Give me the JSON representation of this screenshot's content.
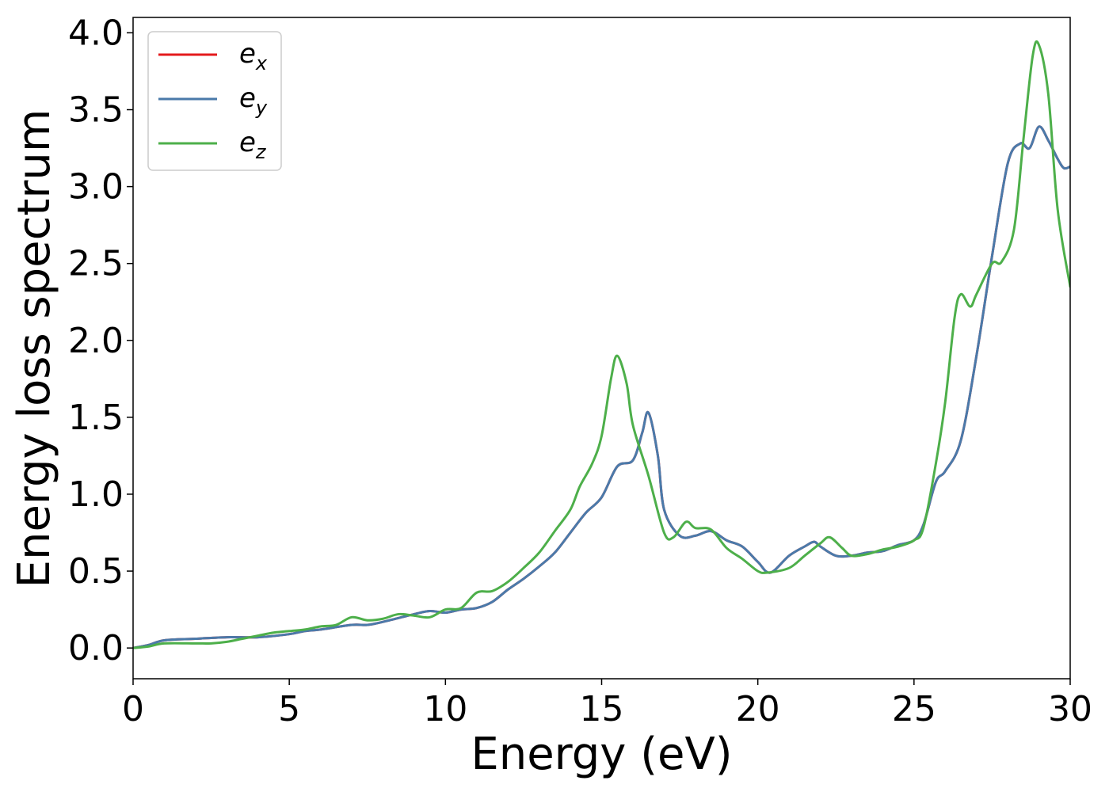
{
  "chart_data": {
    "type": "line",
    "xlabel": "Energy (eV)",
    "ylabel": "Energy loss spectrum",
    "xlim": [
      0,
      30
    ],
    "ylim": [
      -0.2,
      4.1
    ],
    "xticks": [
      0,
      5,
      10,
      15,
      20,
      25,
      30
    ],
    "xtick_labels": [
      "0",
      "5",
      "10",
      "15",
      "20",
      "25",
      "30"
    ],
    "yticks": [
      0.0,
      0.5,
      1.0,
      1.5,
      2.0,
      2.5,
      3.0,
      3.5,
      4.0
    ],
    "ytick_labels": [
      "0.0",
      "0.5",
      "1.0",
      "1.5",
      "2.0",
      "2.5",
      "3.0",
      "3.5",
      "4.0"
    ],
    "grid": false,
    "legend_position": "top-left",
    "series": [
      {
        "name": "e",
        "subscript": "x",
        "color": "#e41a1c",
        "x": [
          0,
          0.5,
          1,
          2,
          3,
          4,
          5,
          5.5,
          6,
          7,
          7.5,
          8,
          9,
          9.5,
          10,
          10.5,
          11,
          11.5,
          12,
          12.5,
          13,
          13.5,
          14,
          14.5,
          15,
          15.5,
          16,
          16.3,
          16.5,
          16.8,
          17,
          17.5,
          18,
          18.5,
          19,
          19.5,
          20,
          20.4,
          21,
          21.5,
          21.8,
          22,
          22.5,
          23,
          23.5,
          24,
          24.5,
          25,
          25.3,
          25.7,
          26,
          26.5,
          27,
          27.5,
          28,
          28.4,
          28.7,
          29,
          29.3,
          29.6,
          29.8,
          30
        ],
        "y": [
          0.0,
          0.02,
          0.05,
          0.06,
          0.07,
          0.07,
          0.09,
          0.11,
          0.12,
          0.15,
          0.15,
          0.17,
          0.22,
          0.24,
          0.23,
          0.25,
          0.26,
          0.3,
          0.38,
          0.45,
          0.53,
          0.62,
          0.75,
          0.88,
          0.98,
          1.18,
          1.22,
          1.4,
          1.53,
          1.25,
          0.9,
          0.73,
          0.73,
          0.76,
          0.7,
          0.66,
          0.56,
          0.49,
          0.6,
          0.66,
          0.69,
          0.66,
          0.6,
          0.6,
          0.62,
          0.63,
          0.67,
          0.7,
          0.8,
          1.08,
          1.15,
          1.35,
          1.9,
          2.55,
          3.15,
          3.28,
          3.25,
          3.39,
          3.3,
          3.18,
          3.12,
          3.13
        ]
      },
      {
        "name": "e",
        "subscript": "y",
        "color": "#4a7aaa",
        "x": [
          0,
          0.5,
          1,
          2,
          3,
          4,
          5,
          5.5,
          6,
          7,
          7.5,
          8,
          9,
          9.5,
          10,
          10.5,
          11,
          11.5,
          12,
          12.5,
          13,
          13.5,
          14,
          14.5,
          15,
          15.5,
          16,
          16.3,
          16.5,
          16.8,
          17,
          17.5,
          18,
          18.5,
          19,
          19.5,
          20,
          20.4,
          21,
          21.5,
          21.8,
          22,
          22.5,
          23,
          23.5,
          24,
          24.5,
          25,
          25.3,
          25.7,
          26,
          26.5,
          27,
          27.5,
          28,
          28.4,
          28.7,
          29,
          29.3,
          29.6,
          29.8,
          30
        ],
        "y": [
          0.0,
          0.02,
          0.05,
          0.06,
          0.07,
          0.07,
          0.09,
          0.11,
          0.12,
          0.15,
          0.15,
          0.17,
          0.22,
          0.24,
          0.23,
          0.25,
          0.26,
          0.3,
          0.38,
          0.45,
          0.53,
          0.62,
          0.75,
          0.88,
          0.98,
          1.18,
          1.22,
          1.4,
          1.53,
          1.25,
          0.9,
          0.73,
          0.73,
          0.76,
          0.7,
          0.66,
          0.56,
          0.49,
          0.6,
          0.66,
          0.69,
          0.66,
          0.6,
          0.6,
          0.62,
          0.63,
          0.67,
          0.7,
          0.8,
          1.08,
          1.15,
          1.35,
          1.9,
          2.55,
          3.15,
          3.28,
          3.25,
          3.39,
          3.3,
          3.18,
          3.12,
          3.13
        ]
      },
      {
        "name": "e",
        "subscript": "z",
        "color": "#4daf4a",
        "x": [
          0,
          0.5,
          1,
          2,
          2.5,
          3,
          3.5,
          4,
          4.5,
          5,
          5.5,
          6,
          6.5,
          7,
          7.5,
          8,
          8.5,
          9,
          9.5,
          10,
          10.5,
          11,
          11.5,
          12,
          12.5,
          13,
          13.5,
          14,
          14.3,
          14.7,
          15,
          15.3,
          15.5,
          15.8,
          16,
          16.5,
          17,
          17.3,
          17.7,
          18,
          18.5,
          19,
          19.5,
          20,
          20.3,
          21,
          21.5,
          22,
          22.3,
          22.7,
          23,
          23.5,
          24,
          24.5,
          25,
          25.3,
          25.7,
          26,
          26.3,
          26.5,
          26.8,
          27,
          27.5,
          27.8,
          28.2,
          28.5,
          28.8,
          29,
          29.3,
          29.6,
          30
        ],
        "y": [
          0.0,
          0.01,
          0.03,
          0.03,
          0.03,
          0.04,
          0.06,
          0.08,
          0.1,
          0.11,
          0.12,
          0.14,
          0.15,
          0.2,
          0.18,
          0.19,
          0.22,
          0.21,
          0.2,
          0.25,
          0.26,
          0.36,
          0.37,
          0.43,
          0.52,
          0.62,
          0.76,
          0.9,
          1.05,
          1.2,
          1.38,
          1.75,
          1.9,
          1.72,
          1.45,
          1.12,
          0.75,
          0.72,
          0.82,
          0.78,
          0.77,
          0.65,
          0.58,
          0.5,
          0.49,
          0.52,
          0.6,
          0.68,
          0.72,
          0.65,
          0.6,
          0.61,
          0.64,
          0.66,
          0.7,
          0.78,
          1.2,
          1.6,
          2.15,
          2.3,
          2.22,
          2.3,
          2.5,
          2.51,
          2.72,
          3.3,
          3.85,
          3.92,
          3.6,
          2.85,
          2.35
        ]
      }
    ]
  }
}
